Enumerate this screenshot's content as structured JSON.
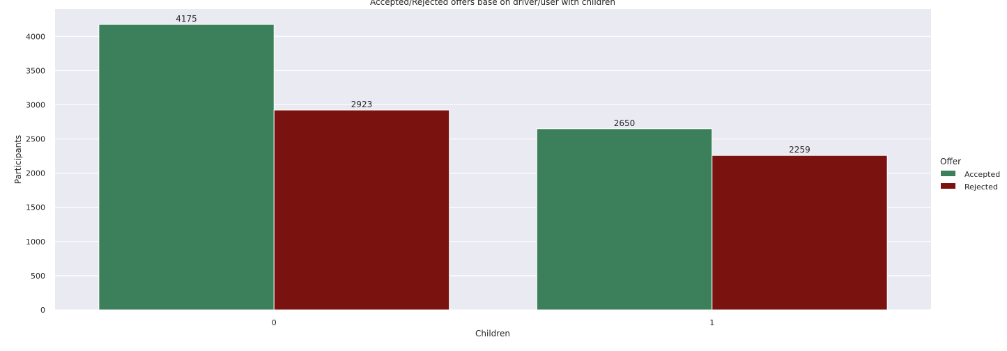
{
  "chart_data": {
    "type": "bar",
    "title": "Accepted/Rejected offers base on driver/user with children",
    "xlabel": "Children",
    "ylabel": "Participants",
    "categories": [
      "0",
      "1"
    ],
    "series": [
      {
        "name": "Accepted",
        "values": [
          4175,
          2650
        ],
        "color": "#3b805b"
      },
      {
        "name": "Rejected",
        "values": [
          2923,
          2259
        ],
        "color": "#7a1210"
      }
    ],
    "ylim": [
      0,
      4400
    ],
    "yticks": [
      0,
      500,
      1000,
      1500,
      2000,
      2500,
      3000,
      3500,
      4000
    ],
    "grid": true,
    "legend": {
      "title": "Offer",
      "placement": "right"
    },
    "background_color": "#eaeaf2",
    "grid_color": "#ffffff"
  }
}
